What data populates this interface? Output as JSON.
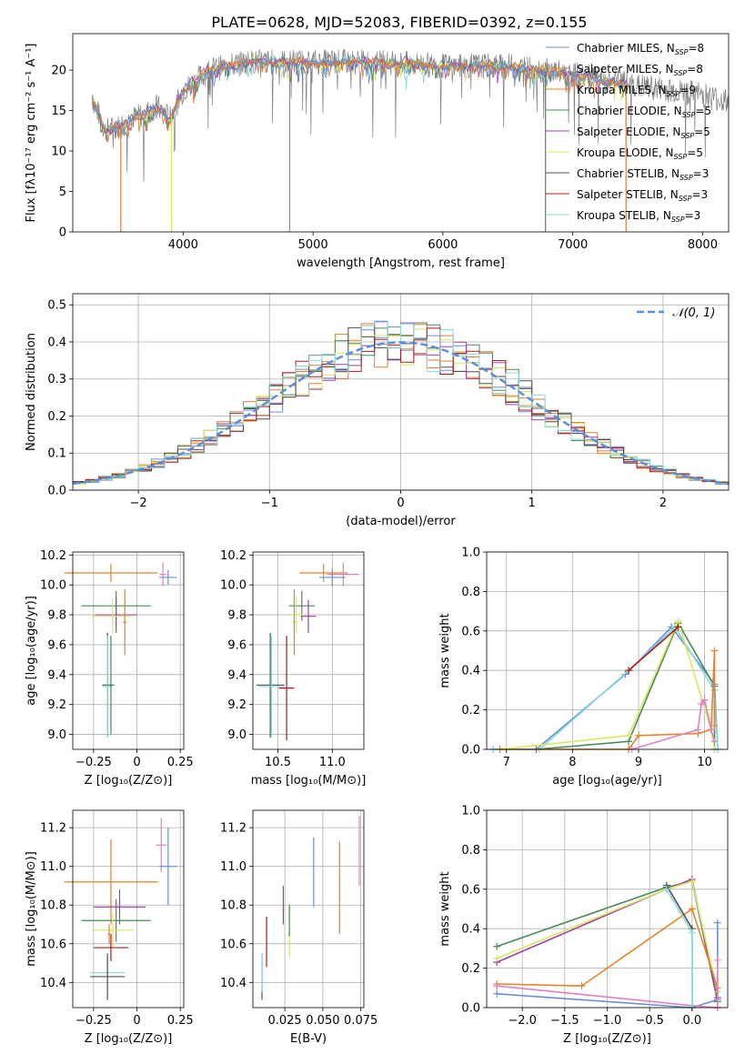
{
  "title": "PLATE=0628, MJD=52083, FIBERID=0392, z=0.155",
  "colors": {
    "chabrier_miles": "#6a8fd8",
    "salpeter_miles": "#e07a3a",
    "kroupa_miles": "#e8822a",
    "chabrier_elodie": "#4a8a5a",
    "salpeter_elodie": "#a040b0",
    "kroupa_elodie": "#d8e860",
    "chabrier_stelib": "#505050",
    "salpeter_stelib": "#b01818",
    "kroupa_stelib": "#88d8e0",
    "pink": "#e080c0",
    "grey": "#808080",
    "gauss": "#5b8fd8",
    "grid": "#b0b0b0"
  },
  "chart_data": [
    {
      "id": "spectrum",
      "type": "line",
      "xlabel": "wavelength [Angstrom, rest frame]",
      "ylabel": "Flux [fλ10⁻¹⁷ erg cm⁻² s⁻¹ A⁻¹]",
      "xlim": [
        3150,
        8200
      ],
      "ylim": [
        0,
        24.5
      ],
      "xticks": [
        4000,
        5000,
        6000,
        7000,
        8000
      ],
      "yticks": [
        0,
        5,
        10,
        15,
        20
      ],
      "legend_position": "right",
      "legend": [
        {
          "label": "Chabrier MILES, N",
          "sub": "SSP",
          "suffix": "=8",
          "color": "chabrier_miles"
        },
        {
          "label": "Salpeter MILES, N",
          "sub": "SSP",
          "suffix": "=8",
          "color": "salpeter_miles"
        },
        {
          "label": "Kroupa MILES, N",
          "sub": "SSP",
          "suffix": "=9",
          "color": "kroupa_miles"
        },
        {
          "label": "Chabrier ELODIE, N",
          "sub": "SSP",
          "suffix": "=5",
          "color": "chabrier_elodie"
        },
        {
          "label": "Salpeter ELODIE, N",
          "sub": "SSP",
          "suffix": "=5",
          "color": "salpeter_elodie"
        },
        {
          "label": "Kroupa ELODIE, N",
          "sub": "SSP",
          "suffix": "=5",
          "color": "kroupa_elodie"
        },
        {
          "label": "Chabrier STELIB, N",
          "sub": "SSP",
          "suffix": "=3",
          "color": "chabrier_stelib"
        },
        {
          "label": "Salpeter STELIB, N",
          "sub": "SSP",
          "suffix": "=3",
          "color": "salpeter_stelib"
        },
        {
          "label": "Kroupa STELIB, N",
          "sub": "SSP",
          "suffix": "=3",
          "color": "kroupa_stelib"
        }
      ],
      "data_outline": [
        [
          3300,
          16.5
        ],
        [
          3400,
          12.5
        ],
        [
          3500,
          13.0
        ],
        [
          3600,
          14.0
        ],
        [
          3700,
          14.5
        ],
        [
          3800,
          15.5
        ],
        [
          3900,
          14.0
        ],
        [
          4000,
          17.5
        ],
        [
          4200,
          20.0
        ],
        [
          4500,
          21.0
        ],
        [
          5000,
          21.0
        ],
        [
          5500,
          21.0
        ],
        [
          6000,
          20.5
        ],
        [
          6500,
          20.5
        ],
        [
          7000,
          19.5
        ],
        [
          7500,
          18.0
        ],
        [
          8000,
          17.0
        ],
        [
          8200,
          16.0
        ]
      ]
    },
    {
      "id": "residuals",
      "type": "step",
      "xlabel": "(data-model)/error",
      "ylabel": "Normed distribution",
      "xlim": [
        -2.5,
        2.5
      ],
      "ylim": [
        0,
        0.53
      ],
      "xticks": [
        -2,
        -1,
        0,
        1,
        2
      ],
      "yticks": [
        0.0,
        0.1,
        0.2,
        0.3,
        0.4,
        0.5
      ],
      "legend": "𝒩(0, 1)",
      "legend_position": "top-right"
    },
    {
      "id": "age_vs_Z",
      "type": "errorbar",
      "xlabel": "Z [log₁₀(Z/Z⊙)]",
      "ylabel": "age  [log₁₀(age/yr)]",
      "xlim": [
        -0.37,
        0.27
      ],
      "ylim": [
        8.9,
        10.22
      ],
      "xticks": [
        -0.25,
        0.0,
        0.25
      ],
      "yticks": [
        9.0,
        9.2,
        9.4,
        9.6,
        9.8,
        10.0,
        10.2
      ],
      "points": [
        {
          "x": -0.15,
          "xerr": 0.27,
          "y": 10.08,
          "yerr": 0.06,
          "color": "kroupa_miles"
        },
        {
          "x": 0.15,
          "xerr": 0.02,
          "y": 10.07,
          "yerr": 0.08,
          "color": "pink"
        },
        {
          "x": 0.18,
          "xerr": 0.05,
          "y": 10.05,
          "yerr": 0.05,
          "color": "chabrier_miles"
        },
        {
          "x": -0.12,
          "xerr": 0.2,
          "y": 9.86,
          "yerr": 0.1,
          "color": "chabrier_elodie"
        },
        {
          "x": -0.12,
          "xerr": 0.12,
          "y": 9.8,
          "yerr": 0.12,
          "color": "salpeter_elodie"
        },
        {
          "x": -0.14,
          "xerr": 0.12,
          "y": 9.79,
          "yerr": 0.12,
          "color": "kroupa_elodie"
        },
        {
          "x": -0.07,
          "xerr": 0.01,
          "y": 9.75,
          "yerr": 0.22,
          "color": "kroupa_miles"
        },
        {
          "x": -0.17,
          "xerr": 0.03,
          "y": 9.33,
          "yerr": 0.35,
          "color": "chabrier_stelib"
        },
        {
          "x": -0.17,
          "xerr": 0.03,
          "y": 9.32,
          "yerr": 0.34,
          "color": "kroupa_stelib"
        },
        {
          "x": -0.15,
          "xerr": 0.02,
          "y": 9.33,
          "yerr": 0.33,
          "color": "chabrier_elodie"
        }
      ]
    },
    {
      "id": "age_vs_mass",
      "type": "errorbar",
      "xlabel": "mass [log₁₀(M/M⊙)]",
      "ylabel": "",
      "xlim": [
        10.27,
        11.29
      ],
      "ylim": [
        8.9,
        10.22
      ],
      "xticks": [
        10.5,
        11.0
      ],
      "yticks": [
        9.0,
        9.2,
        9.4,
        9.6,
        9.8,
        10.0,
        10.2
      ],
      "points": [
        {
          "x": 10.92,
          "xerr": 0.22,
          "y": 10.08,
          "yerr": 0.06,
          "color": "kroupa_miles"
        },
        {
          "x": 11.1,
          "xerr": 0.15,
          "y": 10.07,
          "yerr": 0.08,
          "color": "pink"
        },
        {
          "x": 11.0,
          "xerr": 0.12,
          "y": 10.05,
          "yerr": 0.06,
          "color": "chabrier_miles"
        },
        {
          "x": 10.72,
          "xerr": 0.12,
          "y": 9.86,
          "yerr": 0.1,
          "color": "chabrier_elodie"
        },
        {
          "x": 10.78,
          "xerr": 0.07,
          "y": 9.79,
          "yerr": 0.11,
          "color": "salpeter_elodie"
        },
        {
          "x": 10.67,
          "xerr": 0.06,
          "y": 9.8,
          "yerr": 0.12,
          "color": "kroupa_elodie"
        },
        {
          "x": 10.65,
          "xerr": 0.01,
          "y": 9.75,
          "yerr": 0.22,
          "color": "kroupa_miles"
        },
        {
          "x": 10.43,
          "xerr": 0.13,
          "y": 9.33,
          "yerr": 0.35,
          "color": "chabrier_stelib"
        },
        {
          "x": 10.44,
          "xerr": 0.12,
          "y": 9.32,
          "yerr": 0.34,
          "color": "kroupa_stelib"
        },
        {
          "x": 10.58,
          "xerr": 0.07,
          "y": 9.31,
          "yerr": 0.35,
          "color": "salpeter_stelib"
        }
      ]
    },
    {
      "id": "mw_vs_age",
      "type": "line",
      "xlabel": "age  [log₁₀(age/yr)]",
      "ylabel": "mass weight",
      "xlim": [
        6.7,
        10.35
      ],
      "ylim": [
        0,
        1.0
      ],
      "xticks": [
        7,
        8,
        9,
        10
      ],
      "yticks": [
        0.0,
        0.2,
        0.4,
        0.6,
        0.8,
        1.0
      ],
      "series": [
        {
          "color": "chabrier_miles",
          "x": [
            6.8,
            7.45,
            8.8,
            9.5,
            10.15,
            10.2,
            10.15
          ],
          "y": [
            0.0,
            0.0,
            0.38,
            0.62,
            0.33,
            0.0,
            0.0
          ]
        },
        {
          "color": "kroupa_stelib",
          "x": [
            6.8,
            7.5,
            8.85,
            9.55,
            10.15,
            10.2
          ],
          "y": [
            0.0,
            0.0,
            0.4,
            0.62,
            0.3,
            0.0
          ]
        },
        {
          "color": "chabrier_elodie",
          "x": [
            7.45,
            8.85,
            9.6,
            10.15,
            10.15
          ],
          "y": [
            0.0,
            0.04,
            0.64,
            0.32,
            0.0
          ]
        },
        {
          "color": "kroupa_elodie",
          "x": [
            6.9,
            8.85,
            9.6,
            10.1,
            10.15
          ],
          "y": [
            0.0,
            0.07,
            0.65,
            0.1,
            0.0
          ]
        },
        {
          "color": "kroupa_miles",
          "x": [
            6.9,
            8.85,
            9.0,
            9.9,
            10.1,
            10.15,
            10.15
          ],
          "y": [
            0.0,
            0.0,
            0.07,
            0.08,
            0.1,
            0.5,
            0.12
          ]
        },
        {
          "color": "pink",
          "x": [
            8.9,
            9.9,
            9.95,
            10.0,
            10.1,
            10.15
          ],
          "y": [
            0.0,
            0.1,
            0.23,
            0.25,
            0.1,
            0.04
          ]
        },
        {
          "color": "salpeter_stelib",
          "x": [
            8.85,
            9.6
          ],
          "y": [
            0.4,
            0.62
          ]
        }
      ]
    },
    {
      "id": "mass_vs_Z",
      "type": "errorbar",
      "xlabel": "Z [log₁₀(Z/Z⊙)]",
      "ylabel": "mass [log₁₀(M/M⊙)]",
      "xlim": [
        -0.37,
        0.27
      ],
      "ylim": [
        10.27,
        11.29
      ],
      "xticks": [
        -0.25,
        0.0,
        0.25
      ],
      "yticks": [
        10.4,
        10.6,
        10.8,
        11.0,
        11.2
      ],
      "points": [
        {
          "x": 0.14,
          "xerr": 0.03,
          "y": 11.11,
          "yerr": 0.14,
          "color": "pink"
        },
        {
          "x": 0.18,
          "xerr": 0.05,
          "y": 11.0,
          "yerr": 0.2,
          "color": "chabrier_miles"
        },
        {
          "x": -0.15,
          "xerr": 0.27,
          "y": 10.92,
          "yerr": 0.22,
          "color": "kroupa_miles"
        },
        {
          "x": -0.1,
          "xerr": 0.15,
          "y": 10.79,
          "yerr": 0.09,
          "color": "salpeter_elodie"
        },
        {
          "x": -0.12,
          "xerr": 0.2,
          "y": 10.72,
          "yerr": 0.11,
          "color": "chabrier_elodie"
        },
        {
          "x": -0.14,
          "xerr": 0.12,
          "y": 10.67,
          "yerr": 0.09,
          "color": "kroupa_elodie"
        },
        {
          "x": -0.15,
          "xerr": 0.1,
          "y": 10.58,
          "yerr": 0.07,
          "color": "salpeter_stelib"
        },
        {
          "x": -0.17,
          "xerr": 0.1,
          "y": 10.45,
          "yerr": 0.09,
          "color": "kroupa_stelib"
        },
        {
          "x": -0.17,
          "xerr": 0.1,
          "y": 10.43,
          "yerr": 0.12,
          "color": "chabrier_stelib"
        },
        {
          "x": -0.16,
          "xerr": 0.01,
          "y": 10.65,
          "yerr": 0.05,
          "color": "kroupa_miles"
        }
      ]
    },
    {
      "id": "mass_vs_ebv",
      "type": "errorbar",
      "xlabel": "E(B-V)",
      "ylabel": "",
      "xlim": [
        0.004,
        0.077
      ],
      "ylim": [
        10.27,
        11.29
      ],
      "xticks": [
        0.025,
        0.05,
        0.075
      ],
      "yticks": [
        10.4,
        10.6,
        10.8,
        11.0,
        11.2
      ],
      "points": [
        {
          "x": 0.074,
          "yerr": 0.18,
          "y": 11.08,
          "color": "pink"
        },
        {
          "x": 0.044,
          "yerr": 0.18,
          "y": 10.97,
          "color": "chabrier_miles"
        },
        {
          "x": 0.061,
          "yerr": 0.24,
          "y": 10.89,
          "color": "kroupa_miles"
        },
        {
          "x": 0.024,
          "yerr": 0.1,
          "y": 10.8,
          "color": "salpeter_elodie"
        },
        {
          "x": 0.028,
          "yerr": 0.14,
          "y": 10.67,
          "color": "kroupa_elodie"
        },
        {
          "x": 0.028,
          "yerr": 0.08,
          "y": 10.72,
          "color": "chabrier_elodie"
        },
        {
          "x": 0.013,
          "yerr": 0.13,
          "y": 10.61,
          "color": "salpeter_stelib"
        },
        {
          "x": 0.01,
          "yerr": 0.12,
          "y": 10.43,
          "color": "chabrier_stelib"
        },
        {
          "x": 0.01,
          "yerr": 0.1,
          "y": 10.45,
          "color": "kroupa_stelib"
        }
      ]
    },
    {
      "id": "mw_vs_Z",
      "type": "line",
      "xlabel": "Z [log₁₀(Z/Z⊙)]",
      "ylabel": "mass weight",
      "xlim": [
        -2.42,
        0.42
      ],
      "ylim": [
        0,
        1.0
      ],
      "xticks": [
        -2.0,
        -1.5,
        -1.0,
        -0.5,
        0.0
      ],
      "yticks": [
        0.0,
        0.2,
        0.4,
        0.6,
        0.8,
        1.0
      ],
      "series": [
        {
          "color": "chabrier_elodie",
          "x": [
            -2.3,
            -0.3,
            0.0,
            0.3
          ],
          "y": [
            0.31,
            0.61,
            0.64,
            0.03
          ]
        },
        {
          "color": "salpeter_elodie",
          "x": [
            -2.3,
            -0.3,
            0.0,
            0.3
          ],
          "y": [
            0.23,
            0.6,
            0.65,
            0.05
          ]
        },
        {
          "color": "kroupa_elodie",
          "x": [
            -2.3,
            -0.3,
            0.0,
            0.3
          ],
          "y": [
            0.25,
            0.6,
            0.64,
            0.08
          ]
        },
        {
          "color": "kroupa_miles",
          "x": [
            -2.3,
            -1.3,
            0.0,
            0.3,
            0.3
          ],
          "y": [
            0.12,
            0.11,
            0.5,
            0.1,
            0.0
          ]
        },
        {
          "color": "chabrier_miles",
          "x": [
            -2.3,
            0.0,
            0.3,
            0.3
          ],
          "y": [
            0.07,
            0.0,
            0.04,
            0.43
          ]
        },
        {
          "color": "pink",
          "x": [
            -2.3,
            0.0,
            0.3,
            0.3
          ],
          "y": [
            0.11,
            0.01,
            0.0,
            0.24
          ]
        },
        {
          "color": "chabrier_stelib",
          "x": [
            -0.3,
            0.0,
            0.0
          ],
          "y": [
            0.62,
            0.4,
            0.0
          ]
        },
        {
          "color": "kroupa_stelib",
          "x": [
            -0.3,
            0.0,
            0.0
          ],
          "y": [
            0.6,
            0.38,
            0.0
          ]
        }
      ]
    }
  ]
}
